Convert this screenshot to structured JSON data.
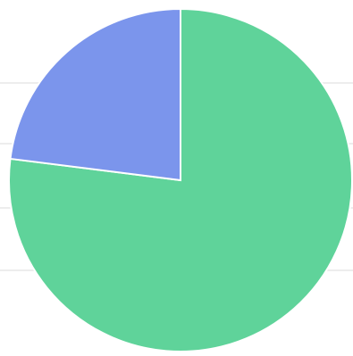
{
  "chart_data": {
    "type": "pie",
    "categories": [
      "",
      ""
    ],
    "values": [
      77,
      23
    ],
    "colors": [
      "#5fd39a",
      "#7b95ec"
    ],
    "start_angle_deg": 90,
    "direction": "clockwise",
    "legend": "none",
    "title": ""
  }
}
